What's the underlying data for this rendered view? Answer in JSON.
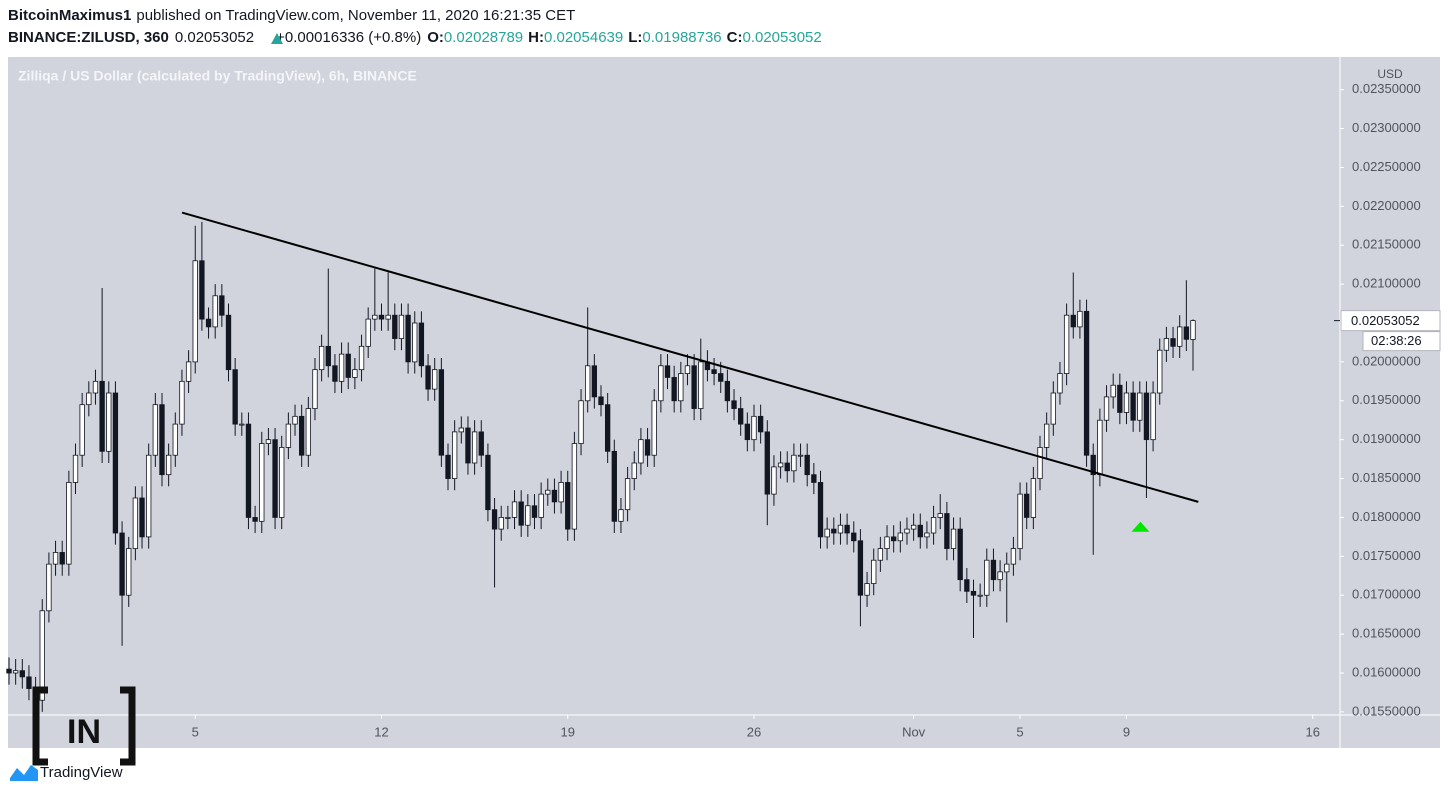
{
  "header": {
    "author": "BitcoinMaximus1",
    "published": "published on TradingView.com, November 11, 2020 16:21:35 CET",
    "symbol": "BINANCE:ZILUSD, 360",
    "change": "+0.00016336 (+0.8%)",
    "o_label": "O:",
    "h_label": "H:",
    "l_label": "L:",
    "c_label": "C:"
  },
  "watermark": "IN",
  "brand": "TradingView",
  "chart_data": {
    "type": "candlestick",
    "title": "Zilliqa / US Dollar (calculated by TradingView), 6h, BINANCE",
    "y_unit": "USD",
    "countdown": "02:38:26",
    "up_color": "#ffffff",
    "down_color": "#131722",
    "outline_color": "#131722",
    "background": "#d1d4dc",
    "grid": false,
    "xlim": [
      -0.15,
      200.1
    ],
    "xticks": [
      {
        "value": 28,
        "label": "5"
      },
      {
        "value": 56,
        "label": "12"
      },
      {
        "value": 84,
        "label": "19"
      },
      {
        "value": 112,
        "label": "26"
      },
      {
        "value": 136,
        "label": "Nov"
      },
      {
        "value": 152,
        "label": "5"
      },
      {
        "value": 168,
        "label": "9"
      },
      {
        "value": 196,
        "label": "16"
      }
    ],
    "ylim": [
      0.01546,
      0.02392
    ],
    "yticks": [
      {
        "value": 0.0155,
        "label": "0.01550000"
      },
      {
        "value": 0.016,
        "label": "0.01600000"
      },
      {
        "value": 0.0165,
        "label": "0.01650000"
      },
      {
        "value": 0.017,
        "label": "0.01700000"
      },
      {
        "value": 0.0175,
        "label": "0.01750000"
      },
      {
        "value": 0.018,
        "label": "0.01800000"
      },
      {
        "value": 0.0185,
        "label": "0.01850000"
      },
      {
        "value": 0.019,
        "label": "0.01900000"
      },
      {
        "value": 0.0195,
        "label": "0.01950000"
      },
      {
        "value": 0.02,
        "label": "0.02000000"
      },
      {
        "value": 0.0205,
        "label": "0.02050000"
      },
      {
        "value": 0.021,
        "label": "0.02100000"
      },
      {
        "value": 0.0215,
        "label": "0.02150000"
      },
      {
        "value": 0.022,
        "label": "0.02200000"
      },
      {
        "value": 0.0225,
        "label": "0.02250000"
      },
      {
        "value": 0.023,
        "label": "0.02300000"
      },
      {
        "value": 0.0235,
        "label": "0.02350000"
      }
    ],
    "trendline": {
      "color": "#000000",
      "x": [
        26,
        178.8
      ],
      "y": [
        0.02192,
        0.0182
      ]
    },
    "marker": {
      "color": "#00e600",
      "x": 170.1,
      "y": 0.01788
    },
    "open": [
      0.01605,
      0.016,
      0.01603,
      0.01595,
      0.0158,
      0.01565,
      0.0168,
      0.0174,
      0.01755,
      0.0174,
      0.01845,
      0.0188,
      0.01945,
      0.0196,
      0.01975,
      0.01885,
      0.0196,
      0.0178,
      0.017,
      0.0176,
      0.01825,
      0.01775,
      0.0188,
      0.01945,
      0.01855,
      0.0188,
      0.0192,
      0.01975,
      0.02,
      0.0213,
      0.02055,
      0.02045,
      0.02085,
      0.0206,
      0.0199,
      0.0192,
      0.0192,
      0.018,
      0.01795,
      0.01895,
      0.019,
      0.018,
      0.0189,
      0.0192,
      0.0193,
      0.0188,
      0.0194,
      0.0199,
      0.0202,
      0.01995,
      0.01975,
      0.0201,
      0.0198,
      0.0199,
      0.0202,
      0.02055,
      0.0206,
      0.02055,
      0.0206,
      0.0203,
      0.0206,
      0.02,
      0.0205,
      0.01995,
      0.01965,
      0.0199,
      0.0188,
      0.0185,
      0.0191,
      0.01915,
      0.0187,
      0.0191,
      0.0188,
      0.0181,
      0.01785,
      0.018,
      0.018,
      0.0182,
      0.0179,
      0.01815,
      0.018,
      0.0183,
      0.01835,
      0.0182,
      0.01845,
      0.01785,
      0.01895,
      0.0195,
      0.01995,
      0.01955,
      0.01945,
      0.01885,
      0.01795,
      0.0181,
      0.0185,
      0.0187,
      0.019,
      0.0188,
      0.0195,
      0.01995,
      0.0198,
      0.0195,
      0.01985,
      0.01995,
      0.0194,
      0.02,
      0.0199,
      0.01985,
      0.01975,
      0.0195,
      0.0194,
      0.0192,
      0.019,
      0.0193,
      0.0191,
      0.0183,
      0.01865,
      0.0187,
      0.0186,
      0.0188,
      0.0188,
      0.01855,
      0.01845,
      0.01775,
      0.01785,
      0.0178,
      0.0179,
      0.0178,
      0.0177,
      0.017,
      0.01715,
      0.01745,
      0.0176,
      0.01775,
      0.0177,
      0.0178,
      0.01785,
      0.0179,
      0.01775,
      0.0178,
      0.018,
      0.01805,
      0.0176,
      0.01785,
      0.0172,
      0.01705,
      0.017,
      0.017,
      0.01745,
      0.0172,
      0.0173,
      0.0174,
      0.0176,
      0.0183,
      0.018,
      0.0185,
      0.0189,
      0.0192,
      0.0196,
      0.01985,
      0.0206,
      0.02045,
      0.02065,
      0.0188,
      0.01855,
      0.01925,
      0.01955,
      0.0197,
      0.01935,
      0.0196,
      0.01925,
      0.0196,
      0.019,
      0.0196,
      0.02015,
      0.0203,
      0.0202,
      0.02045,
      0.02028789
    ],
    "high": [
      0.0162,
      0.01618,
      0.01618,
      0.0161,
      0.01595,
      0.01695,
      0.01755,
      0.0177,
      0.0177,
      0.0186,
      0.01895,
      0.0196,
      0.01975,
      0.0199,
      0.02095,
      0.01975,
      0.01975,
      0.01795,
      0.01775,
      0.0184,
      0.0184,
      0.01895,
      0.0196,
      0.0196,
      0.01895,
      0.01935,
      0.0199,
      0.02015,
      0.02175,
      0.0218,
      0.0207,
      0.021,
      0.021,
      0.02075,
      0.02005,
      0.01935,
      0.01935,
      0.01815,
      0.0191,
      0.01915,
      0.01915,
      0.01905,
      0.01935,
      0.01945,
      0.01945,
      0.01955,
      0.02005,
      0.02035,
      0.0212,
      0.0201,
      0.02025,
      0.02025,
      0.02005,
      0.02035,
      0.0207,
      0.0212,
      0.02075,
      0.02115,
      0.02075,
      0.02075,
      0.02075,
      0.02065,
      0.02065,
      0.0201,
      0.02005,
      0.02005,
      0.01895,
      0.01925,
      0.0193,
      0.0193,
      0.01925,
      0.01925,
      0.01895,
      0.01825,
      0.01815,
      0.01815,
      0.01835,
      0.01835,
      0.0183,
      0.0183,
      0.01845,
      0.0185,
      0.0185,
      0.0186,
      0.0186,
      0.0191,
      0.01965,
      0.0207,
      0.0201,
      0.0197,
      0.0196,
      0.019,
      0.01825,
      0.01865,
      0.01885,
      0.01915,
      0.01915,
      0.01965,
      0.0201,
      0.0201,
      0.01995,
      0.02,
      0.0201,
      0.0201,
      0.0203,
      0.02015,
      0.02005,
      0.02,
      0.0199,
      0.01965,
      0.01955,
      0.01935,
      0.01945,
      0.01945,
      0.01925,
      0.0188,
      0.01885,
      0.01885,
      0.01895,
      0.01895,
      0.01895,
      0.0187,
      0.0186,
      0.018,
      0.018,
      0.01805,
      0.01805,
      0.01795,
      0.01785,
      0.0173,
      0.0176,
      0.01775,
      0.0179,
      0.0179,
      0.01795,
      0.018,
      0.01805,
      0.01805,
      0.01795,
      0.01815,
      0.0183,
      0.0182,
      0.018,
      0.018,
      0.01735,
      0.0172,
      0.01715,
      0.0176,
      0.0176,
      0.01745,
      0.01755,
      0.01775,
      0.01845,
      0.01845,
      0.01865,
      0.01905,
      0.01935,
      0.01975,
      0.02,
      0.02075,
      0.02115,
      0.0208,
      0.0208,
      0.01895,
      0.0194,
      0.0197,
      0.01985,
      0.01985,
      0.01975,
      0.01975,
      0.01975,
      0.01975,
      0.01975,
      0.0203,
      0.02045,
      0.02045,
      0.0206,
      0.02105,
      0.02054639
    ],
    "low": [
      0.01585,
      0.01585,
      0.0158,
      0.01565,
      0.0155,
      0.0155,
      0.01665,
      0.01725,
      0.01725,
      0.01725,
      0.0183,
      0.01865,
      0.0193,
      0.01945,
      0.0187,
      0.0187,
      0.01765,
      0.01635,
      0.01685,
      0.01745,
      0.0176,
      0.0176,
      0.01865,
      0.0184,
      0.0184,
      0.01865,
      0.01905,
      0.0196,
      0.01985,
      0.0204,
      0.0203,
      0.0203,
      0.02045,
      0.01975,
      0.01905,
      0.01905,
      0.01785,
      0.0178,
      0.0178,
      0.0188,
      0.01785,
      0.01785,
      0.01875,
      0.01905,
      0.01865,
      0.01865,
      0.01925,
      0.01975,
      0.0198,
      0.0196,
      0.0196,
      0.01965,
      0.01965,
      0.01975,
      0.02005,
      0.0204,
      0.0204,
      0.0204,
      0.02015,
      0.02015,
      0.01985,
      0.01985,
      0.0198,
      0.0195,
      0.0195,
      0.01865,
      0.01835,
      0.01835,
      0.01895,
      0.01855,
      0.01855,
      0.01865,
      0.01795,
      0.0171,
      0.0177,
      0.01785,
      0.01785,
      0.01775,
      0.01775,
      0.01785,
      0.01785,
      0.01815,
      0.01805,
      0.01805,
      0.0177,
      0.0177,
      0.0188,
      0.01935,
      0.0194,
      0.0193,
      0.0187,
      0.0178,
      0.0178,
      0.01795,
      0.01835,
      0.01855,
      0.01865,
      0.01865,
      0.01935,
      0.01965,
      0.01935,
      0.01935,
      0.0197,
      0.01925,
      0.01925,
      0.01975,
      0.0197,
      0.0196,
      0.01935,
      0.01925,
      0.01905,
      0.01885,
      0.01885,
      0.01895,
      0.0179,
      0.01815,
      0.0185,
      0.01845,
      0.01845,
      0.01865,
      0.0184,
      0.0183,
      0.0176,
      0.0176,
      0.01765,
      0.01765,
      0.01765,
      0.01755,
      0.0166,
      0.01685,
      0.017,
      0.0173,
      0.01745,
      0.01755,
      0.01755,
      0.01765,
      0.0177,
      0.0176,
      0.0176,
      0.01765,
      0.01785,
      0.01745,
      0.01745,
      0.01705,
      0.0169,
      0.01645,
      0.01685,
      0.01685,
      0.01705,
      0.01705,
      0.01665,
      0.01725,
      0.01745,
      0.01785,
      0.01785,
      0.01835,
      0.01875,
      0.01905,
      0.01945,
      0.0197,
      0.0203,
      0.0203,
      0.01865,
      0.01752,
      0.0184,
      0.0191,
      0.0194,
      0.0192,
      0.0192,
      0.0191,
      0.0191,
      0.01825,
      0.01885,
      0.01945,
      0.02,
      0.02005,
      0.02005,
      0.02014,
      0.01988736
    ],
    "close": [
      0.016,
      0.01603,
      0.01595,
      0.0158,
      0.01565,
      0.0168,
      0.0174,
      0.01755,
      0.0174,
      0.01845,
      0.0188,
      0.01945,
      0.0196,
      0.01975,
      0.01885,
      0.0196,
      0.0178,
      0.017,
      0.0176,
      0.01825,
      0.01775,
      0.0188,
      0.01945,
      0.01855,
      0.0188,
      0.0192,
      0.01975,
      0.02,
      0.0213,
      0.02055,
      0.02045,
      0.02085,
      0.0206,
      0.0199,
      0.0192,
      0.0192,
      0.018,
      0.01795,
      0.01895,
      0.019,
      0.018,
      0.0189,
      0.0192,
      0.0193,
      0.0188,
      0.0194,
      0.0199,
      0.0202,
      0.01995,
      0.01975,
      0.0201,
      0.0198,
      0.0199,
      0.0202,
      0.02055,
      0.0206,
      0.02055,
      0.0206,
      0.0203,
      0.0206,
      0.02,
      0.0205,
      0.01995,
      0.01965,
      0.0199,
      0.0188,
      0.0185,
      0.0191,
      0.01915,
      0.0187,
      0.0191,
      0.0188,
      0.0181,
      0.01785,
      0.018,
      0.018,
      0.0182,
      0.0179,
      0.01815,
      0.018,
      0.0183,
      0.01835,
      0.0182,
      0.01845,
      0.01785,
      0.01895,
      0.0195,
      0.01995,
      0.01955,
      0.01945,
      0.01885,
      0.01795,
      0.0181,
      0.0185,
      0.0187,
      0.019,
      0.0188,
      0.0195,
      0.01995,
      0.0198,
      0.0195,
      0.01985,
      0.01995,
      0.0194,
      0.02,
      0.0199,
      0.01985,
      0.01975,
      0.0195,
      0.0194,
      0.0192,
      0.019,
      0.0193,
      0.0191,
      0.0183,
      0.01865,
      0.0187,
      0.0186,
      0.0188,
      0.0188,
      0.01855,
      0.01845,
      0.01775,
      0.01785,
      0.0178,
      0.0179,
      0.0178,
      0.0177,
      0.017,
      0.01715,
      0.01745,
      0.0176,
      0.01775,
      0.0177,
      0.0178,
      0.01785,
      0.0179,
      0.01775,
      0.0178,
      0.018,
      0.01805,
      0.0176,
      0.01785,
      0.0172,
      0.01705,
      0.017,
      0.017,
      0.01745,
      0.0172,
      0.0173,
      0.0174,
      0.0176,
      0.0183,
      0.018,
      0.0185,
      0.0189,
      0.0192,
      0.0196,
      0.01985,
      0.0206,
      0.02045,
      0.02065,
      0.0188,
      0.01855,
      0.01925,
      0.01955,
      0.0197,
      0.01935,
      0.0196,
      0.01925,
      0.0196,
      0.019,
      0.0196,
      0.02015,
      0.0203,
      0.0202,
      0.02045,
      0.02029,
      0.02053052
    ]
  }
}
